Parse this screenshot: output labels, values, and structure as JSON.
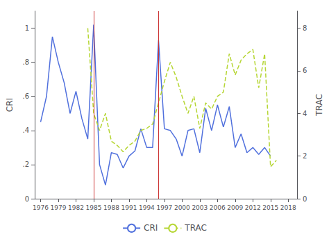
{
  "chart_data": {
    "type": "line",
    "ylabel": "CRI",
    "y2label": "TRAC",
    "xlim": [
      1975,
      2019.5
    ],
    "xticks": [
      1976,
      1979,
      1982,
      1985,
      1988,
      1991,
      1994,
      1997,
      2000,
      2003,
      2006,
      2009,
      2012,
      2015,
      2018
    ],
    "ylim": [
      0,
      1.1
    ],
    "yticks": [
      0,
      {
        "value": 0.2,
        "label": ".2"
      },
      {
        "value": 0.4,
        "label": ".4"
      },
      {
        "value": 0.6,
        "label": ".6"
      },
      {
        "value": 0.8,
        "label": ".8"
      },
      1
    ],
    "y2lim": [
      0,
      8.8
    ],
    "y2ticks": [
      0,
      2,
      4,
      6,
      8
    ],
    "grid": false,
    "legend": "bottom",
    "series": [
      {
        "name": "CRI",
        "line_style": "solid",
        "x": [
          1976,
          1977,
          1978,
          1979,
          1980,
          1981,
          1982,
          1983,
          1984,
          1985,
          1986,
          1987,
          1988,
          1989,
          1990,
          1991,
          1992,
          1993,
          1994,
          1995,
          1996,
          1997,
          1998,
          1999,
          2000,
          2001,
          2002,
          2003,
          2004,
          2005,
          2006,
          2007,
          2008,
          2009,
          2010,
          2011,
          2012,
          2013,
          2014,
          2015
        ],
        "values": [
          0.45,
          0.6,
          0.95,
          0.8,
          0.68,
          0.5,
          0.63,
          0.47,
          0.35,
          1.02,
          0.2,
          0.08,
          0.27,
          0.26,
          0.18,
          0.25,
          0.28,
          0.41,
          0.3,
          0.3,
          0.93,
          0.41,
          0.4,
          0.35,
          0.25,
          0.4,
          0.41,
          0.27,
          0.53,
          0.4,
          0.55,
          0.42,
          0.54,
          0.3,
          0.38,
          0.27,
          0.3,
          0.26,
          0.3,
          0.25
        ]
      },
      {
        "name": "TRAC",
        "axis": "y2",
        "line_style": "dashed",
        "x": [
          1984,
          1985,
          1986,
          1987,
          1988,
          1989,
          1990,
          1991,
          1992,
          1993,
          1994,
          1995,
          1996,
          1997,
          1998,
          1999,
          2000,
          2001,
          2002,
          2003,
          2004,
          2005,
          2006,
          2007,
          2008,
          2009,
          2010,
          2011,
          2012,
          2013,
          2014,
          2015,
          2016
        ],
        "values": [
          8.0,
          4.0,
          3.2,
          4.0,
          2.7,
          2.5,
          2.2,
          2.5,
          2.7,
          3.2,
          3.3,
          3.5,
          4.5,
          5.5,
          6.4,
          5.7,
          4.8,
          4.0,
          4.8,
          3.3,
          4.5,
          4.2,
          4.8,
          5.0,
          6.8,
          5.8,
          6.5,
          6.8,
          7.0,
          5.2,
          6.8,
          1.5,
          1.8
        ]
      }
    ],
    "vlines": {
      "values": [
        1985,
        1996
      ],
      "color": "#cc3333"
    }
  }
}
